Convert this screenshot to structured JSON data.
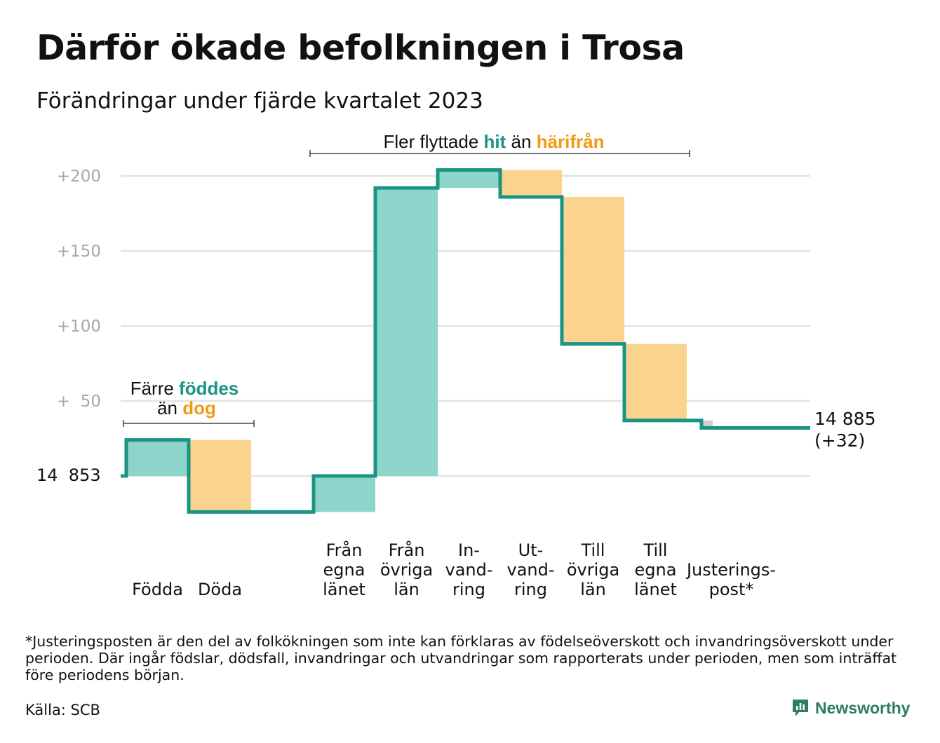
{
  "title": "Därför ökade befolkningen i Trosa",
  "subtitle": "Förändringar under fjärde kvartalet 2023",
  "chart_data": {
    "type": "waterfall",
    "baseline": {
      "value": 14853,
      "label": "14  853"
    },
    "end": {
      "value": 14885,
      "label_line1": "14 885",
      "label_line2": "(+32)"
    },
    "yticks": [
      {
        "offset": 200,
        "label": "+200"
      },
      {
        "offset": 150,
        "label": "+150"
      },
      {
        "offset": 100,
        "label": "+100"
      },
      {
        "offset": 50,
        "label": "+  50"
      }
    ],
    "ylim": [
      -30,
      210
    ],
    "steps": [
      {
        "label": [
          "Födda"
        ],
        "change": 24,
        "kind": "in"
      },
      {
        "label": [
          "Döda"
        ],
        "change": -48,
        "kind": "out"
      },
      {
        "label": [],
        "change": 0,
        "kind": "gap"
      },
      {
        "label": [
          "Från",
          "egna",
          "länet"
        ],
        "change": 24,
        "kind": "in"
      },
      {
        "label": [
          "Från",
          "övriga",
          "län"
        ],
        "change": 192,
        "kind": "in"
      },
      {
        "label": [
          "In-",
          "vand-",
          "ring"
        ],
        "change": 12,
        "kind": "in"
      },
      {
        "label": [
          "Ut-",
          "vand-",
          "ring"
        ],
        "change": -18,
        "kind": "out"
      },
      {
        "label": [
          "Till",
          "övriga",
          "län"
        ],
        "change": -98,
        "kind": "out"
      },
      {
        "label": [
          "Till",
          "egna",
          "länet"
        ],
        "change": -51,
        "kind": "out"
      },
      {
        "label": [
          "Justerings-",
          "post*"
        ],
        "change": -5,
        "kind": "adjust"
      }
    ],
    "annotations": {
      "migration": {
        "prefix": "Fler flyttade ",
        "hit": "hit",
        "middle": " än ",
        "harifran": "härifrån"
      },
      "births": {
        "line1_prefix": "Färre ",
        "line1_highlight": "föddes",
        "line2_prefix": "än ",
        "line2_highlight": "dog"
      }
    },
    "colors": {
      "line": "#1a9484",
      "in_fill": "#8dd4cb",
      "out_fill": "#fad48f",
      "adjust_fill": "#cfcfcf",
      "hit_text": "#1a9484",
      "out_text": "#f29a16",
      "grid": "#e3e3e3",
      "tick_text": "#a8a8a8"
    }
  },
  "footnote": "*Justeringsposten är den del av folkökningen som inte kan förklaras av födelseöverskott och invandringsöverskott under perioden. Där ingår födslar, dödsfall, invandringar och utvandringar som rapporterats under perioden, men som inträffat före periodens början.",
  "source": "Källa: SCB",
  "brand": "Newsworthy"
}
